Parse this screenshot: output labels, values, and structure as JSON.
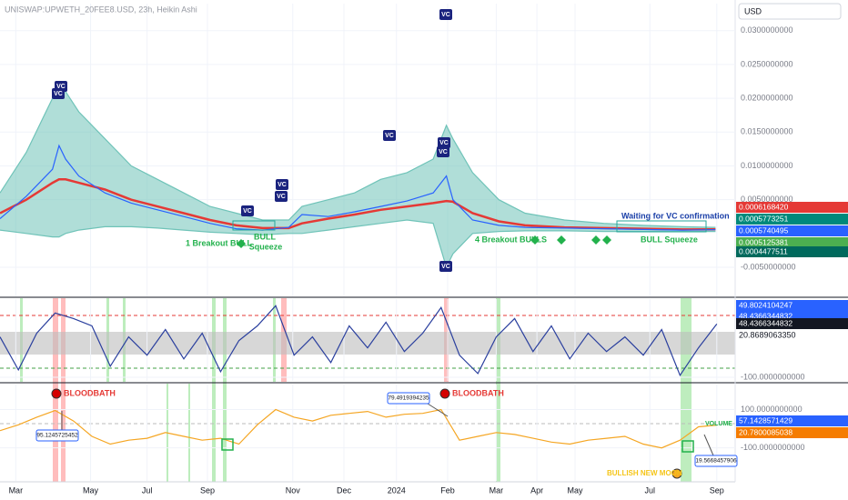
{
  "chart_data": [
    {
      "type": "line",
      "title": "UNISWAP:UPWETH_20FEE8.USD, 23h, Heikin Ashi",
      "currency": "USD",
      "x": [
        0,
        20,
        40,
        45,
        50,
        60,
        80,
        100,
        120,
        140,
        160,
        180,
        200,
        220,
        230,
        250,
        270,
        290,
        310,
        330,
        340,
        345,
        360,
        380,
        400,
        430,
        460,
        490,
        520,
        545
      ],
      "series": [
        {
          "color": "#6fc3b8",
          "values": [
            0.006,
            0.012,
            0.02,
            0.022,
            0.021,
            0.018,
            0.014,
            0.01,
            0.008,
            0.006,
            0.004,
            0.003,
            0.002,
            0.002,
            0.004,
            0.005,
            0.006,
            0.008,
            0.009,
            0.011,
            0.016,
            0.014,
            0.009,
            0.005,
            0.003,
            0.002,
            0.0015,
            0.0012,
            0.001,
            0.0009
          ]
        },
        {
          "color": "#6fc3b8",
          "values": [
            0.0005,
            0.0,
            -0.0005,
            -0.0005,
            0.0,
            0.0005,
            0.001,
            0.001,
            0.0008,
            0.0005,
            0.0002,
            0.0,
            -0.0002,
            0.0,
            0.0,
            0.0005,
            0.001,
            0.0015,
            0.002,
            0.0015,
            -0.005,
            -0.003,
            0.0,
            0.0003,
            0.0004,
            0.0004,
            0.0003,
            0.0003,
            0.0003,
            0.0003
          ]
        },
        {
          "color": "#e53935",
          "values": [
            0.003,
            0.005,
            0.0075,
            0.008,
            0.008,
            0.0075,
            0.0065,
            0.005,
            0.004,
            0.003,
            0.002,
            0.0012,
            0.0008,
            0.0008,
            0.0015,
            0.0022,
            0.0028,
            0.0035,
            0.004,
            0.0045,
            0.0048,
            0.0047,
            0.003,
            0.0018,
            0.0012,
            0.0009,
            0.0008,
            0.0007,
            0.0006,
            0.00062
          ]
        },
        {
          "color": "#2962ff",
          "values": [
            0.0022,
            0.0055,
            0.0095,
            0.013,
            0.011,
            0.0085,
            0.006,
            0.0045,
            0.0035,
            0.0025,
            0.0015,
            0.0007,
            0.0005,
            0.0009,
            0.0028,
            0.0025,
            0.0032,
            0.004,
            0.0048,
            0.006,
            0.0085,
            0.005,
            0.002,
            0.0012,
            0.0009,
            0.0008,
            0.0007,
            0.0006,
            0.0005,
            0.00057
          ]
        }
      ],
      "fill_between": true,
      "ylim": [
        -0.0093,
        0.034
      ],
      "yticks": [
        {
          "value": 0.03,
          "label": "0.0300000000"
        },
        {
          "value": 0.025,
          "label": "0.0250000000"
        },
        {
          "value": 0.02,
          "label": "0.0200000000"
        },
        {
          "value": 0.015,
          "label": "0.0150000000"
        },
        {
          "value": 0.01,
          "label": "0.0100000000"
        },
        {
          "value": 0.005,
          "label": "0.0050000000"
        },
        {
          "value": -0.005,
          "label": "-0.0050000000"
        }
      ],
      "price_labels": [
        "0.0006168420",
        "0.0005773251",
        "0.0005740495",
        "0.0005125381",
        "0.0004477511"
      ],
      "marker_label": "VC",
      "annotations": {
        "breakout_1": "1 Breakout BULL",
        "squeeze_1": [
          "BULL",
          "Squeeze"
        ],
        "breakout_4": "4 Breakout BULLS",
        "waiting": "Waiting for VC confirmation",
        "squeeze_2": "BULL Squeeze"
      }
    },
    {
      "type": "line",
      "x": [
        0,
        14,
        28,
        42,
        56,
        70,
        84,
        98,
        112,
        126,
        140,
        154,
        168,
        182,
        196,
        210,
        224,
        238,
        252,
        266,
        280,
        294,
        308,
        322,
        336,
        350,
        364,
        378,
        392,
        406,
        420,
        434,
        448,
        462,
        476,
        490,
        504,
        518,
        532,
        546
      ],
      "series": [
        {
          "color": "#2a3f9e",
          "values": [
            10,
            -80,
            20,
            75,
            60,
            40,
            -70,
            10,
            -40,
            30,
            -50,
            20,
            -85,
            0,
            40,
            95,
            -40,
            10,
            -60,
            40,
            -20,
            50,
            -30,
            20,
            90,
            -40,
            -90,
            10,
            60,
            -30,
            40,
            -50,
            20,
            -30,
            10,
            -40,
            30,
            -95,
            -20,
            45
          ]
        }
      ],
      "ylim": [
        -110,
        113
      ],
      "yticks": [
        {
          "value": -100,
          "label": "-100.0000000000"
        }
      ],
      "price_labels": [
        "49.8024104247",
        "48.4366344832",
        "48.4366344832",
        "20.8689063350"
      ]
    },
    {
      "type": "line",
      "x": [
        0,
        14,
        28,
        42,
        56,
        70,
        84,
        98,
        112,
        126,
        140,
        154,
        168,
        182,
        196,
        210,
        224,
        238,
        252,
        266,
        280,
        294,
        308,
        322,
        336,
        350,
        364,
        378,
        392,
        406,
        420,
        434,
        448,
        462,
        476,
        490,
        504,
        518,
        532,
        546
      ],
      "series": [
        {
          "color": "#f5a623",
          "values": [
            -10,
            20,
            60,
            95,
            40,
            -40,
            -80,
            -60,
            -50,
            -20,
            -40,
            -60,
            -50,
            -80,
            20,
            100,
            60,
            40,
            70,
            80,
            90,
            60,
            75,
            80,
            100,
            -60,
            -40,
            -20,
            -30,
            -50,
            -70,
            -80,
            -60,
            -50,
            -40,
            -80,
            -100,
            -60,
            10,
            19
          ]
        }
      ],
      "ylim": [
        -272,
        230
      ],
      "yticks": [
        {
          "value": 100,
          "label": "100.0000000000"
        },
        {
          "value": -100,
          "label": "-100.0000000000"
        }
      ],
      "xlim": [
        0,
        560
      ],
      "xticks": [
        {
          "value": 12,
          "label": "Mar"
        },
        {
          "value": 69,
          "label": "May"
        },
        {
          "value": 112,
          "label": "Jul"
        },
        {
          "value": 158,
          "label": "Sep"
        },
        {
          "value": 223,
          "label": "Nov"
        },
        {
          "value": 262,
          "label": "Dec"
        },
        {
          "value": 302,
          "label": "2024"
        },
        {
          "value": 341,
          "label": "Feb"
        },
        {
          "value": 378,
          "label": "Mar"
        },
        {
          "value": 409,
          "label": "Apr"
        },
        {
          "value": 438,
          "label": "May"
        },
        {
          "value": 495,
          "label": "Jul"
        },
        {
          "value": 546,
          "label": "Sep"
        }
      ],
      "price_labels": [
        "57.1428571429",
        "20.7800085038"
      ],
      "annotations": {
        "bloodbath": "BLOODBATH",
        "new_moon": "BULLISH NEW MOON",
        "volume": "VOLUME"
      },
      "callouts": [
        95.1245725452,
        79.4919394235,
        19.5668457906
      ]
    }
  ]
}
